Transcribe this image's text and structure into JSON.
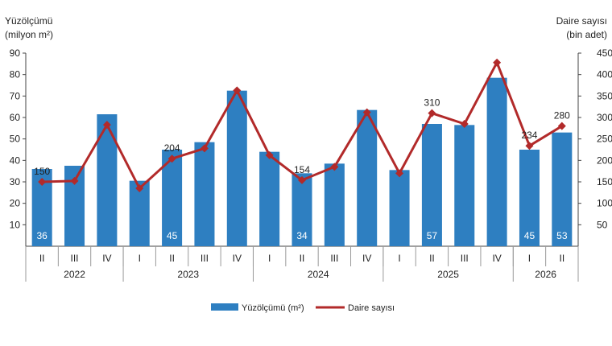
{
  "chart_data": {
    "type": "bar",
    "left_axis_title": [
      "Yüzölçümü",
      "(milyon m²)"
    ],
    "right_axis_title": [
      "Daire sayısı",
      "(bin adet)"
    ],
    "left_ylim": [
      0,
      90
    ],
    "right_ylim": [
      0,
      450
    ],
    "left_ticks": [
      "10",
      "20",
      "30",
      "40",
      "50",
      "60",
      "70",
      "80",
      "90"
    ],
    "right_ticks": [
      "50",
      "100",
      "150",
      "200",
      "250",
      "300",
      "350",
      "400",
      "450"
    ],
    "quarters": [
      "II",
      "III",
      "IV",
      "I",
      "II",
      "III",
      "IV",
      "I",
      "II",
      "III",
      "IV",
      "I",
      "II",
      "III",
      "IV",
      "I",
      "II"
    ],
    "years": [
      {
        "label": "2022",
        "count": 3
      },
      {
        "label": "2023",
        "count": 4
      },
      {
        "label": "2024",
        "count": 4
      },
      {
        "label": "2025",
        "count": 4
      },
      {
        "label": "2026",
        "count": 2
      }
    ],
    "series": [
      {
        "name": "Yüzölçümü (m²)",
        "kind": "bar",
        "axis": "left",
        "color": "#2e7fc1",
        "values": [
          36,
          37.5,
          61.5,
          30.5,
          45,
          48.5,
          72.5,
          44,
          34,
          38.5,
          63.5,
          35.5,
          57,
          56.5,
          78.5,
          45,
          53
        ],
        "labels": [
          "36",
          "",
          "",
          "",
          "45",
          "",
          "",
          "",
          "34",
          "",
          "",
          "",
          "57",
          "",
          "",
          "45",
          "53"
        ]
      },
      {
        "name": "Daire sayısı",
        "kind": "line",
        "axis": "right",
        "color": "#b22a2a",
        "values": [
          150,
          152,
          283,
          135,
          204,
          228,
          363,
          212,
          154,
          185,
          312,
          170,
          310,
          285,
          428,
          234,
          280
        ],
        "labels": [
          "150",
          "",
          "",
          "",
          "204",
          "",
          "",
          "",
          "154",
          "",
          "",
          "",
          "310",
          "",
          "",
          "234",
          "280"
        ]
      }
    ],
    "grid": false,
    "legend": "bottom"
  }
}
